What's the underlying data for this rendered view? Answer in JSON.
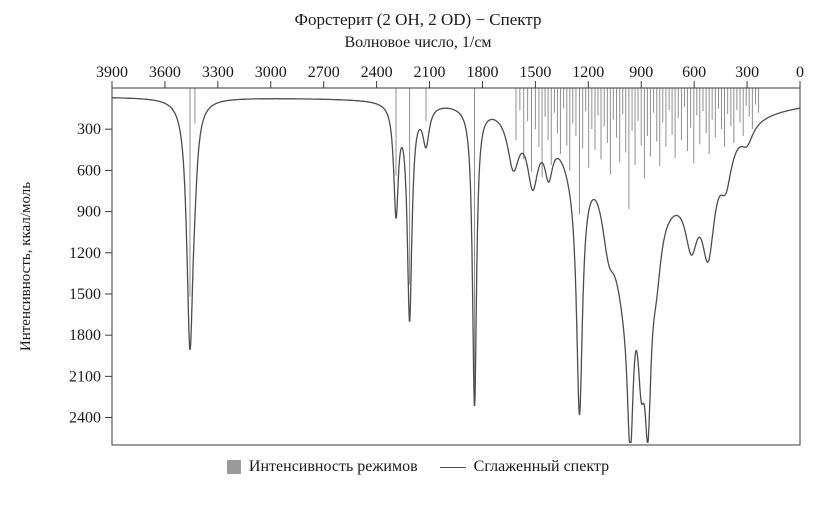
{
  "figure": {
    "title": "Форстерит (2 OH, 2 OD) − Спектр",
    "xlabel": "Волновое число, 1/см",
    "ylabel": "Интенсивность, ккал/моль",
    "legend": {
      "modes": "Интенсивность режимов",
      "smooth": "Сглаженный спектр"
    }
  },
  "colors": {
    "curve": "#4d4d4d",
    "modes": "#8f8f8f",
    "axis": "#3a3a3a"
  },
  "chart_data": {
    "type": "line",
    "title": "Форстерит (2 OH, 2 OD) − Спектр",
    "xlabel": "Волновое число, 1/см",
    "ylabel": "Интенсивность, ккал/моль",
    "x_ticks": [
      3900,
      3600,
      3300,
      3000,
      2700,
      2400,
      2100,
      1800,
      1500,
      1200,
      900,
      600,
      300,
      0
    ],
    "y_ticks": [
      300,
      600,
      900,
      1200,
      1500,
      1800,
      2100,
      2400
    ],
    "xlim": [
      3900,
      0
    ],
    "ylim_inverted": [
      0,
      2600
    ],
    "grid": false,
    "legend_position": "bottom",
    "legend": [
      "Интенсивность режимов",
      "Сглаженный спектр"
    ],
    "baseline": 60,
    "smoothed_spectrum_peaks": [
      {
        "center": 760,
        "intensity": 600,
        "hwhm": 260
      },
      {
        "center": 3458,
        "intensity": 1780,
        "hwhm": 22
      },
      {
        "center": 3430,
        "intensity": 200,
        "hwhm": 18
      },
      {
        "center": 2290,
        "intensity": 790,
        "hwhm": 16
      },
      {
        "center": 2213,
        "intensity": 1560,
        "hwhm": 16
      },
      {
        "center": 2120,
        "intensity": 280,
        "hwhm": 22
      },
      {
        "center": 1845,
        "intensity": 2180,
        "hwhm": 14
      },
      {
        "center": 1625,
        "intensity": 380,
        "hwhm": 40
      },
      {
        "center": 1515,
        "intensity": 460,
        "hwhm": 38
      },
      {
        "center": 1425,
        "intensity": 300,
        "hwhm": 28
      },
      {
        "center": 1250,
        "intensity": 1700,
        "hwhm": 20
      },
      {
        "center": 1260,
        "intensity": 350,
        "hwhm": 100
      },
      {
        "center": 1085,
        "intensity": 480,
        "hwhm": 50
      },
      {
        "center": 1000,
        "intensity": 750,
        "hwhm": 70
      },
      {
        "center": 962,
        "intensity": 1280,
        "hwhm": 22
      },
      {
        "center": 900,
        "intensity": 900,
        "hwhm": 26
      },
      {
        "center": 862,
        "intensity": 1270,
        "hwhm": 22
      },
      {
        "center": 815,
        "intensity": 420,
        "hwhm": 35
      },
      {
        "center": 615,
        "intensity": 480,
        "hwhm": 45
      },
      {
        "center": 520,
        "intensity": 700,
        "hwhm": 45
      },
      {
        "center": 420,
        "intensity": 300,
        "hwhm": 40
      },
      {
        "center": 300,
        "intensity": 130,
        "hwhm": 40
      }
    ],
    "mode_intensities": [
      [
        3458,
        1520
      ],
      [
        3430,
        260
      ],
      [
        2290,
        640
      ],
      [
        2213,
        1430
      ],
      [
        2120,
        240
      ],
      [
        1845,
        2230
      ],
      [
        1610,
        380
      ],
      [
        1588,
        160
      ],
      [
        1566,
        520
      ],
      [
        1544,
        240
      ],
      [
        1522,
        610
      ],
      [
        1500,
        300
      ],
      [
        1480,
        430
      ],
      [
        1462,
        650
      ],
      [
        1445,
        210
      ],
      [
        1428,
        380
      ],
      [
        1410,
        560
      ],
      [
        1392,
        180
      ],
      [
        1375,
        330
      ],
      [
        1358,
        480
      ],
      [
        1340,
        150
      ],
      [
        1322,
        420
      ],
      [
        1305,
        600
      ],
      [
        1288,
        260
      ],
      [
        1270,
        350
      ],
      [
        1250,
        920
      ],
      [
        1232,
        440
      ],
      [
        1215,
        170
      ],
      [
        1198,
        580
      ],
      [
        1180,
        300
      ],
      [
        1162,
        450
      ],
      [
        1145,
        200
      ],
      [
        1128,
        520
      ],
      [
        1110,
        280
      ],
      [
        1092,
        400
      ],
      [
        1075,
        630
      ],
      [
        1058,
        230
      ],
      [
        1040,
        360
      ],
      [
        1022,
        540
      ],
      [
        1005,
        190
      ],
      [
        988,
        470
      ],
      [
        970,
        880
      ],
      [
        952,
        310
      ],
      [
        935,
        560
      ],
      [
        918,
        240
      ],
      [
        900,
        420
      ],
      [
        882,
        660
      ],
      [
        865,
        350
      ],
      [
        848,
        500
      ],
      [
        830,
        180
      ],
      [
        812,
        390
      ],
      [
        795,
        570
      ],
      [
        778,
        250
      ],
      [
        760,
        430
      ],
      [
        742,
        160
      ],
      [
        725,
        340
      ],
      [
        708,
        510
      ],
      [
        690,
        220
      ],
      [
        672,
        380
      ],
      [
        655,
        140
      ],
      [
        638,
        460
      ],
      [
        620,
        290
      ],
      [
        602,
        550
      ],
      [
        585,
        200
      ],
      [
        568,
        410
      ],
      [
        550,
        170
      ],
      [
        532,
        330
      ],
      [
        515,
        480
      ],
      [
        498,
        230
      ],
      [
        480,
        360
      ],
      [
        462,
        150
      ],
      [
        445,
        300
      ],
      [
        428,
        430
      ],
      [
        410,
        190
      ],
      [
        392,
        280
      ],
      [
        375,
        400
      ],
      [
        358,
        160
      ],
      [
        340,
        250
      ],
      [
        322,
        350
      ],
      [
        305,
        130
      ],
      [
        288,
        210
      ],
      [
        270,
        300
      ],
      [
        252,
        120
      ],
      [
        235,
        180
      ]
    ]
  }
}
